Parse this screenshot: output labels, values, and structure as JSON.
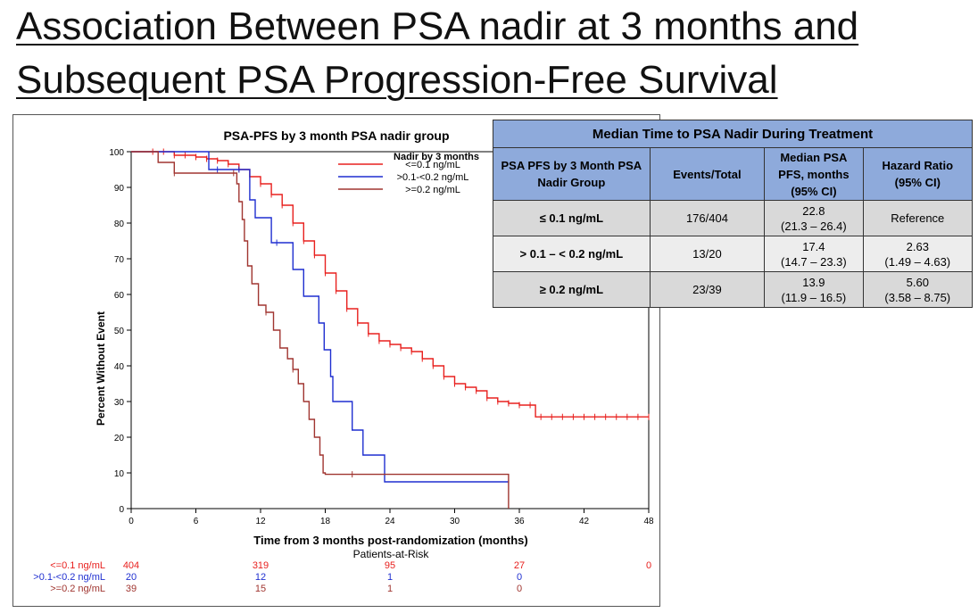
{
  "slide": {
    "title_line1": "Association Between PSA nadir at 3 months and",
    "title_line2": "Subsequent PSA Progression-Free Survival"
  },
  "table": {
    "title": "Median Time to PSA Nadir During Treatment",
    "headers": {
      "group": "PSA PFS by 3 Month PSA Nadir Group",
      "events": "Events/Total",
      "median_l1": "Median PSA",
      "median_l2": "PFS, months",
      "median_l3": "(95% CI)",
      "hr_l1": "Hazard Ratio",
      "hr_l2": "(95% CI)"
    },
    "rows": [
      {
        "group": "≤ 0.1 ng/mL",
        "events": "176/404",
        "median": "22.8",
        "median_ci": "(21.3 – 26.4)",
        "hr": "Reference",
        "hr_ci": ""
      },
      {
        "group": "> 0.1 – < 0.2 ng/mL",
        "events": "13/20",
        "median": "17.4",
        "median_ci": "(14.7 – 23.3)",
        "hr": "2.63",
        "hr_ci": "(1.49 – 4.63)"
      },
      {
        "group": "≥ 0.2 ng/mL",
        "events": "23/39",
        "median": "13.9",
        "median_ci": "(11.9 – 16.5)",
        "hr": "5.60",
        "hr_ci": "(3.58 – 8.75)"
      }
    ]
  },
  "chart_data": {
    "type": "line",
    "subtype": "kaplan-meier step",
    "title": "PSA-PFS by 3 month PSA nadir group",
    "xlabel": "Time from 3 months post-randomization (months)",
    "ylabel": "Percent Without Event",
    "xlim": [
      0,
      48
    ],
    "ylim": [
      0,
      100
    ],
    "xticks": [
      0,
      6,
      12,
      18,
      24,
      30,
      36,
      42,
      48
    ],
    "yticks": [
      0,
      10,
      20,
      30,
      40,
      50,
      60,
      70,
      80,
      90,
      100
    ],
    "legend_title": "Nadir by 3 months",
    "legend_position": "top-right",
    "series": [
      {
        "name": "<=0.1 ng/mL",
        "color": "#e8201e",
        "points": [
          [
            0,
            100
          ],
          [
            3,
            100
          ],
          [
            4,
            99
          ],
          [
            5,
            99
          ],
          [
            6,
            98.5
          ],
          [
            7,
            98
          ],
          [
            8,
            97.5
          ],
          [
            9,
            96.5
          ],
          [
            10,
            95
          ],
          [
            11,
            93
          ],
          [
            12,
            91
          ],
          [
            13,
            88
          ],
          [
            14,
            85
          ],
          [
            15,
            80
          ],
          [
            16,
            75
          ],
          [
            17,
            71
          ],
          [
            18,
            66
          ],
          [
            19,
            61
          ],
          [
            20,
            56
          ],
          [
            21,
            52
          ],
          [
            22,
            49
          ],
          [
            23,
            47
          ],
          [
            24,
            46
          ],
          [
            25,
            45
          ],
          [
            26,
            44
          ],
          [
            27,
            42
          ],
          [
            28,
            40
          ],
          [
            29,
            37
          ],
          [
            30,
            35
          ],
          [
            31,
            34
          ],
          [
            32,
            33
          ],
          [
            33,
            31
          ],
          [
            34,
            30
          ],
          [
            35,
            29.5
          ],
          [
            36,
            29
          ],
          [
            37,
            29
          ],
          [
            37.5,
            25.7
          ],
          [
            48,
            25.7
          ]
        ],
        "censor_x": [
          2,
          3,
          4,
          5,
          6,
          7,
          8,
          9,
          10,
          11,
          12,
          13,
          14,
          15,
          16,
          17,
          18,
          19,
          20,
          21,
          22,
          23,
          24,
          25,
          26,
          27,
          28,
          29,
          30,
          31,
          32,
          33,
          34,
          35,
          36,
          37,
          38,
          39,
          40,
          41,
          42,
          43,
          44,
          45,
          46,
          47,
          48
        ]
      },
      {
        "name": ">0.1-<0.2 ng/mL",
        "color": "#1f2fd0",
        "points": [
          [
            0,
            100
          ],
          [
            3,
            100
          ],
          [
            7.2,
            95
          ],
          [
            10.5,
            95
          ],
          [
            11,
            86.5
          ],
          [
            11.5,
            81.5
          ],
          [
            12.8,
            81.5
          ],
          [
            13,
            74.5
          ],
          [
            14.8,
            74.5
          ],
          [
            15,
            67
          ],
          [
            15.8,
            67
          ],
          [
            16,
            59.5
          ],
          [
            17.2,
            59.5
          ],
          [
            17.4,
            52
          ],
          [
            17.7,
            52
          ],
          [
            17.9,
            44.5
          ],
          [
            18.3,
            44.5
          ],
          [
            18.5,
            37
          ],
          [
            18.7,
            30
          ],
          [
            20.2,
            30
          ],
          [
            20.5,
            22
          ],
          [
            21.5,
            15
          ],
          [
            23.5,
            7.5
          ],
          [
            35,
            7.5
          ]
        ],
        "censor_x": [
          8,
          10,
          13.5,
          35
        ]
      },
      {
        "name": ">=0.2 ng/mL",
        "color": "#a03530",
        "points": [
          [
            0,
            100
          ],
          [
            2.5,
            97
          ],
          [
            3.5,
            97
          ],
          [
            4,
            94
          ],
          [
            9.5,
            94
          ],
          [
            9.8,
            91
          ],
          [
            10,
            86
          ],
          [
            10.3,
            81
          ],
          [
            10.5,
            75
          ],
          [
            10.8,
            68
          ],
          [
            11.2,
            63
          ],
          [
            11.8,
            57
          ],
          [
            12.5,
            55
          ],
          [
            13.2,
            50
          ],
          [
            13.8,
            45
          ],
          [
            14.5,
            42
          ],
          [
            15,
            39
          ],
          [
            15.5,
            35
          ],
          [
            16,
            30
          ],
          [
            16.5,
            25
          ],
          [
            17,
            20
          ],
          [
            17.5,
            15
          ],
          [
            17.8,
            10
          ],
          [
            18,
            9.6
          ],
          [
            35,
            9.6
          ],
          [
            35,
            0
          ]
        ],
        "censor_x": [
          4,
          9.5,
          12.5,
          15,
          20.5
        ]
      }
    ],
    "risk_table": {
      "title": "Patients-at-Risk",
      "times": [
        0,
        12,
        24,
        36,
        48
      ],
      "rows": [
        {
          "label": "<=0.1 ng/mL",
          "color": "#e8201e",
          "values": [
            "404",
            "319",
            "95",
            "27",
            "0"
          ]
        },
        {
          "label": ">0.1-<0.2 ng/mL",
          "color": "#1f2fd0",
          "values": [
            "20",
            "12",
            "1",
            "0",
            ""
          ]
        },
        {
          "label": ">=0.2 ng/mL",
          "color": "#a03530",
          "values": [
            "39",
            "15",
            "1",
            "0",
            ""
          ]
        }
      ]
    }
  }
}
